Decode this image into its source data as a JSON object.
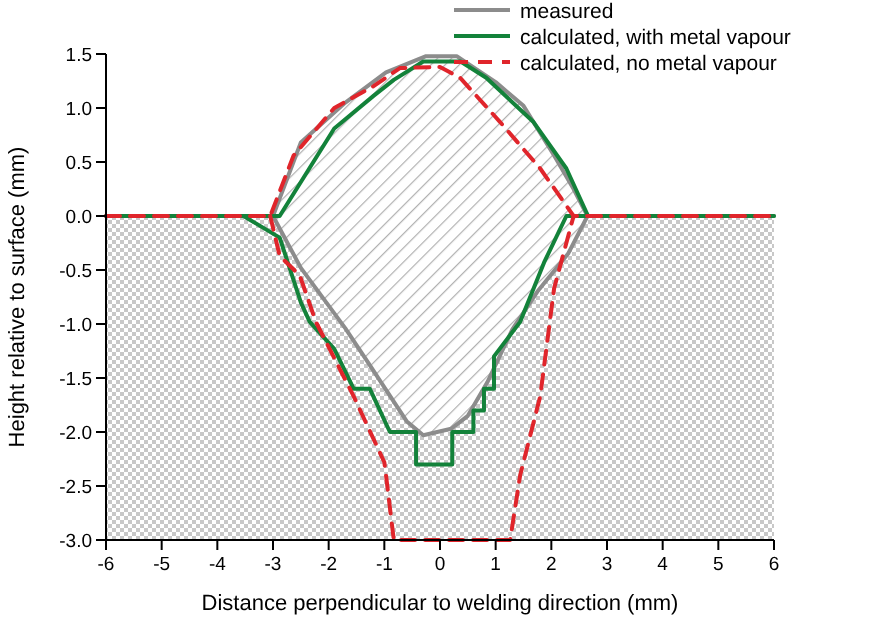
{
  "chart_data": {
    "type": "line",
    "xlabel": "Distance perpendicular to welding direction (mm)",
    "ylabel": "Height relative to surface (mm)",
    "xlim": [
      -6,
      6
    ],
    "xticks": [
      -6,
      -5,
      -4,
      -3,
      -2,
      -1,
      0,
      1,
      2,
      3,
      4,
      5,
      6
    ],
    "ylim": [
      -3,
      1.5
    ],
    "yticks": [
      {
        "value": -3,
        "label": "-3.0"
      },
      {
        "value": -2.5,
        "label": "-2.5"
      },
      {
        "value": -2,
        "label": "-2.0"
      },
      {
        "value": -1.5,
        "label": "-1.5"
      },
      {
        "value": -1,
        "label": "-1.0"
      },
      {
        "value": -0.5,
        "label": "-0.5"
      },
      {
        "value": 0,
        "label": "0.0"
      },
      {
        "value": 0.5,
        "label": "0.5"
      },
      {
        "value": 1,
        "label": "1.0"
      },
      {
        "value": 1.5,
        "label": "1.5"
      }
    ],
    "bands": [
      {
        "axis": "y",
        "from": -3,
        "to": 0
      }
    ],
    "legend": "top right",
    "grid": false,
    "line_style": "solid",
    "series": [
      {
        "name": "measured",
        "color": "#8c8c8c",
        "x": [
          -6,
          -3.0,
          -2.5,
          -1.7,
          -0.97,
          -0.25,
          0.3,
          1.0,
          1.5,
          2.05,
          2.4,
          2.65,
          6,
          null,
          -3.0,
          -2.5,
          -1.7,
          -1.3,
          -0.6,
          -0.3,
          0.2,
          0.5,
          0.85,
          1.3,
          1.75,
          2.3,
          2.65
        ],
        "values": [
          0,
          0,
          0.68,
          1.05,
          1.33,
          1.48,
          1.48,
          1.24,
          1.02,
          0.56,
          0.25,
          0,
          0,
          null,
          0,
          -0.48,
          -1.04,
          -1.35,
          -1.9,
          -2.03,
          -1.97,
          -1.85,
          -1.54,
          -1.05,
          -0.7,
          -0.35,
          0
        ]
      },
      {
        "name": "calculated, with metal vapour",
        "color": "#13823a",
        "x": [
          -6,
          -2.88,
          -1.9,
          -1.2,
          -0.83,
          -0.3,
          0.37,
          0.83,
          1.68,
          2.27,
          2.66,
          6,
          null,
          -3.53,
          -2.88,
          -2.5,
          -2.34,
          -1.9,
          -1.55,
          -1.26,
          -0.9,
          -0.43,
          -0.43,
          0.22,
          0.22,
          0.6,
          0.6,
          0.79,
          0.79,
          0.97,
          0.97,
          1.44,
          1.87,
          2.27,
          2.66
        ],
        "values": [
          0,
          0,
          0.81,
          1.11,
          1.26,
          1.43,
          1.43,
          1.28,
          0.87,
          0.44,
          0,
          0,
          null,
          0,
          -0.2,
          -0.8,
          -0.98,
          -1.23,
          -1.6,
          -1.6,
          -2.0,
          -2.0,
          -2.3,
          -2.3,
          -2.0,
          -2.0,
          -1.8,
          -1.8,
          -1.6,
          -1.6,
          -1.3,
          -0.98,
          -0.43,
          0,
          0
        ]
      },
      {
        "name": "calculated, no metal vapour",
        "color": "#e0252b",
        "line_style": "dashed",
        "x": [
          -6,
          -3.05,
          -2.63,
          -1.9,
          -1.2,
          -0.72,
          0,
          0.36,
          1.08,
          1.8,
          2.4,
          6,
          null,
          -3.05,
          -2.88,
          -2.52,
          -2.23,
          -1.55,
          -1.0,
          -0.97,
          -0.83,
          1.26,
          1.44,
          1.8,
          2.05,
          2.4
        ],
        "values": [
          0,
          0,
          0.56,
          1.0,
          1.2,
          1.37,
          1.38,
          1.28,
          0.87,
          0.44,
          0,
          0,
          null,
          0,
          -0.37,
          -0.55,
          -0.98,
          -1.67,
          -2.28,
          -2.4,
          -3.0,
          -3.0,
          -2.4,
          -1.67,
          -0.67,
          0
        ]
      }
    ]
  }
}
